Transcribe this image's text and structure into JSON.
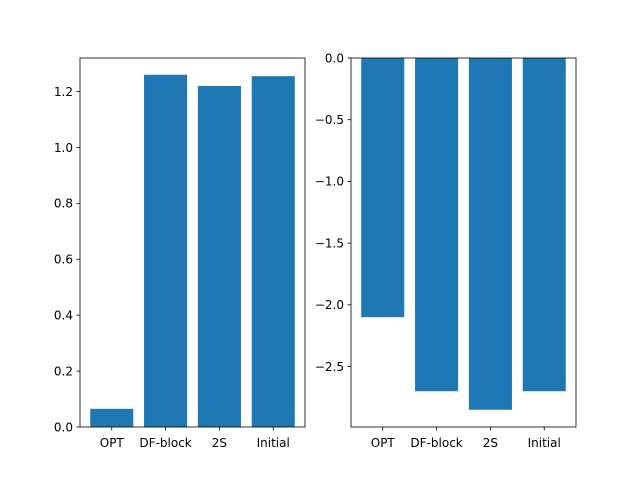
{
  "chart_data": [
    {
      "type": "bar",
      "categories": [
        "OPT",
        "DF-block",
        "2S",
        "Initial"
      ],
      "values": [
        0.065,
        1.26,
        1.22,
        1.255
      ],
      "title": "",
      "xlabel": "",
      "ylabel": "",
      "ylim": [
        0.0,
        1.32
      ],
      "yticks": [
        0.0,
        0.2,
        0.4,
        0.6,
        0.8,
        1.0,
        1.2
      ],
      "ytick_labels": [
        "0.0",
        "0.2",
        "0.4",
        "0.6",
        "0.8",
        "1.0",
        "1.2"
      ],
      "grid": false,
      "bar_color": "#1f77b4"
    },
    {
      "type": "bar",
      "categories": [
        "OPT",
        "DF-block",
        "2S",
        "Initial"
      ],
      "values": [
        -2.1,
        -2.7,
        -2.85,
        -2.7
      ],
      "title": "",
      "xlabel": "",
      "ylabel": "",
      "ylim": [
        -2.99,
        0.0
      ],
      "yticks": [
        0.0,
        -0.5,
        -1.0,
        -1.5,
        -2.0,
        -2.5
      ],
      "ytick_labels": [
        "0.0",
        "−0.5",
        "−1.0",
        "−1.5",
        "−2.0",
        "−2.5"
      ],
      "grid": false,
      "bar_color": "#1f77b4"
    }
  ]
}
